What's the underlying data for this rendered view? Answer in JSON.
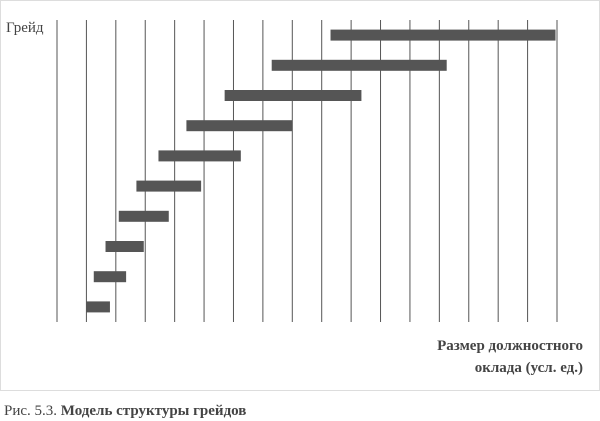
{
  "chart_data": {
    "type": "range_bar",
    "ylabel": "Грейд",
    "xlabel": [
      "Размер должностного",
      "оклада (усл. ед.)"
    ],
    "caption": {
      "label": "Рис. 5.3.",
      "text": "Модель структуры грейдов"
    },
    "categories": [
      null,
      null,
      null,
      null,
      null,
      null,
      null,
      null,
      null,
      null
    ],
    "starts": [
      1.0,
      1.25,
      1.65,
      2.1,
      2.7,
      3.45,
      4.4,
      5.7,
      7.3,
      9.3
    ],
    "ends": [
      1.8,
      2.35,
      2.95,
      3.8,
      4.9,
      6.25,
      8.0,
      10.35,
      13.25,
      16.95
    ],
    "color": "#555555",
    "xlim": [
      0,
      17
    ],
    "xticks": [
      0,
      1,
      2,
      3,
      4,
      5,
      6,
      7,
      8,
      9,
      10,
      11,
      12,
      13,
      14,
      15,
      16,
      17
    ],
    "xtick_labels": false,
    "grid": true
  }
}
